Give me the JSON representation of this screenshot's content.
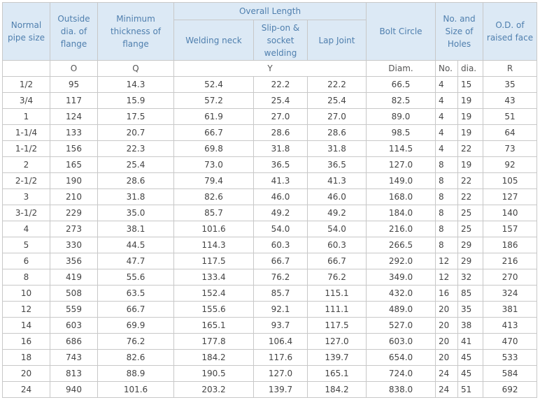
{
  "table": {
    "header": {
      "pipe_size": "Normal pipe size",
      "outside_dia": "Outside dia. of flange",
      "min_thickness": "Minimum thickness of flange",
      "overall_length": "Overall Length",
      "welding_neck": "Welding neck",
      "slip_on": "Slip-on & socket welding",
      "lap_joint": "Lap Joint",
      "bolt_circle": "Bolt Circle",
      "holes": "No. and Size of Holes",
      "raised_face": "O.D. of raised face"
    },
    "units": {
      "outside_dia": "O",
      "min_thickness": "Q",
      "overall_length": "Y",
      "bolt_circle": "Diam.",
      "holes_no": "No.",
      "holes_dia": "dia.",
      "raised_face": "R"
    },
    "rows": [
      [
        "1/2",
        "95",
        "14.3",
        "52.4",
        "22.2",
        "22.2",
        "66.5",
        "4",
        "15",
        "35"
      ],
      [
        "3/4",
        "117",
        "15.9",
        "57.2",
        "25.4",
        "25.4",
        "82.5",
        "4",
        "19",
        "43"
      ],
      [
        "1",
        "124",
        "17.5",
        "61.9",
        "27.0",
        "27.0",
        "89.0",
        "4",
        "19",
        "51"
      ],
      [
        "1-1/4",
        "133",
        "20.7",
        "66.7",
        "28.6",
        "28.6",
        "98.5",
        "4",
        "19",
        "64"
      ],
      [
        "1-1/2",
        "156",
        "22.3",
        "69.8",
        "31.8",
        "31.8",
        "114.5",
        "4",
        "22",
        "73"
      ],
      [
        "2",
        "165",
        "25.4",
        "73.0",
        "36.5",
        "36.5",
        "127.0",
        "8",
        "19",
        "92"
      ],
      [
        "2-1/2",
        "190",
        "28.6",
        "79.4",
        "41.3",
        "41.3",
        "149.0",
        "8",
        "22",
        "105"
      ],
      [
        "3",
        "210",
        "31.8",
        "82.6",
        "46.0",
        "46.0",
        "168.0",
        "8",
        "22",
        "127"
      ],
      [
        "3-1/2",
        "229",
        "35.0",
        "85.7",
        "49.2",
        "49.2",
        "184.0",
        "8",
        "25",
        "140"
      ],
      [
        "4",
        "273",
        "38.1",
        "101.6",
        "54.0",
        "54.0",
        "216.0",
        "8",
        "25",
        "157"
      ],
      [
        "5",
        "330",
        "44.5",
        "114.3",
        "60.3",
        "60.3",
        "266.5",
        "8",
        "29",
        "186"
      ],
      [
        "6",
        "356",
        "47.7",
        "117.5",
        "66.7",
        "66.7",
        "292.0",
        "12",
        "29",
        "216"
      ],
      [
        "8",
        "419",
        "55.6",
        "133.4",
        "76.2",
        "76.2",
        "349.0",
        "12",
        "32",
        "270"
      ],
      [
        "10",
        "508",
        "63.5",
        "152.4",
        "85.7",
        "115.1",
        "432.0",
        "16",
        "85",
        "324"
      ],
      [
        "12",
        "559",
        "66.7",
        "155.6",
        "92.1",
        "111.1",
        "489.0",
        "20",
        "35",
        "381"
      ],
      [
        "14",
        "603",
        "69.9",
        "165.1",
        "93.7",
        "117.5",
        "527.0",
        "20",
        "38",
        "413"
      ],
      [
        "16",
        "686",
        "76.2",
        "177.8",
        "106.4",
        "127.0",
        "603.0",
        "20",
        "41",
        "470"
      ],
      [
        "18",
        "743",
        "82.6",
        "184.2",
        "117.6",
        "139.7",
        "654.0",
        "20",
        "45",
        "533"
      ],
      [
        "20",
        "813",
        "88.9",
        "190.5",
        "127.0",
        "165.1",
        "724.0",
        "24",
        "45",
        "584"
      ],
      [
        "24",
        "940",
        "101.6",
        "203.2",
        "139.7",
        "184.2",
        "838.0",
        "24",
        "51",
        "692"
      ]
    ]
  }
}
